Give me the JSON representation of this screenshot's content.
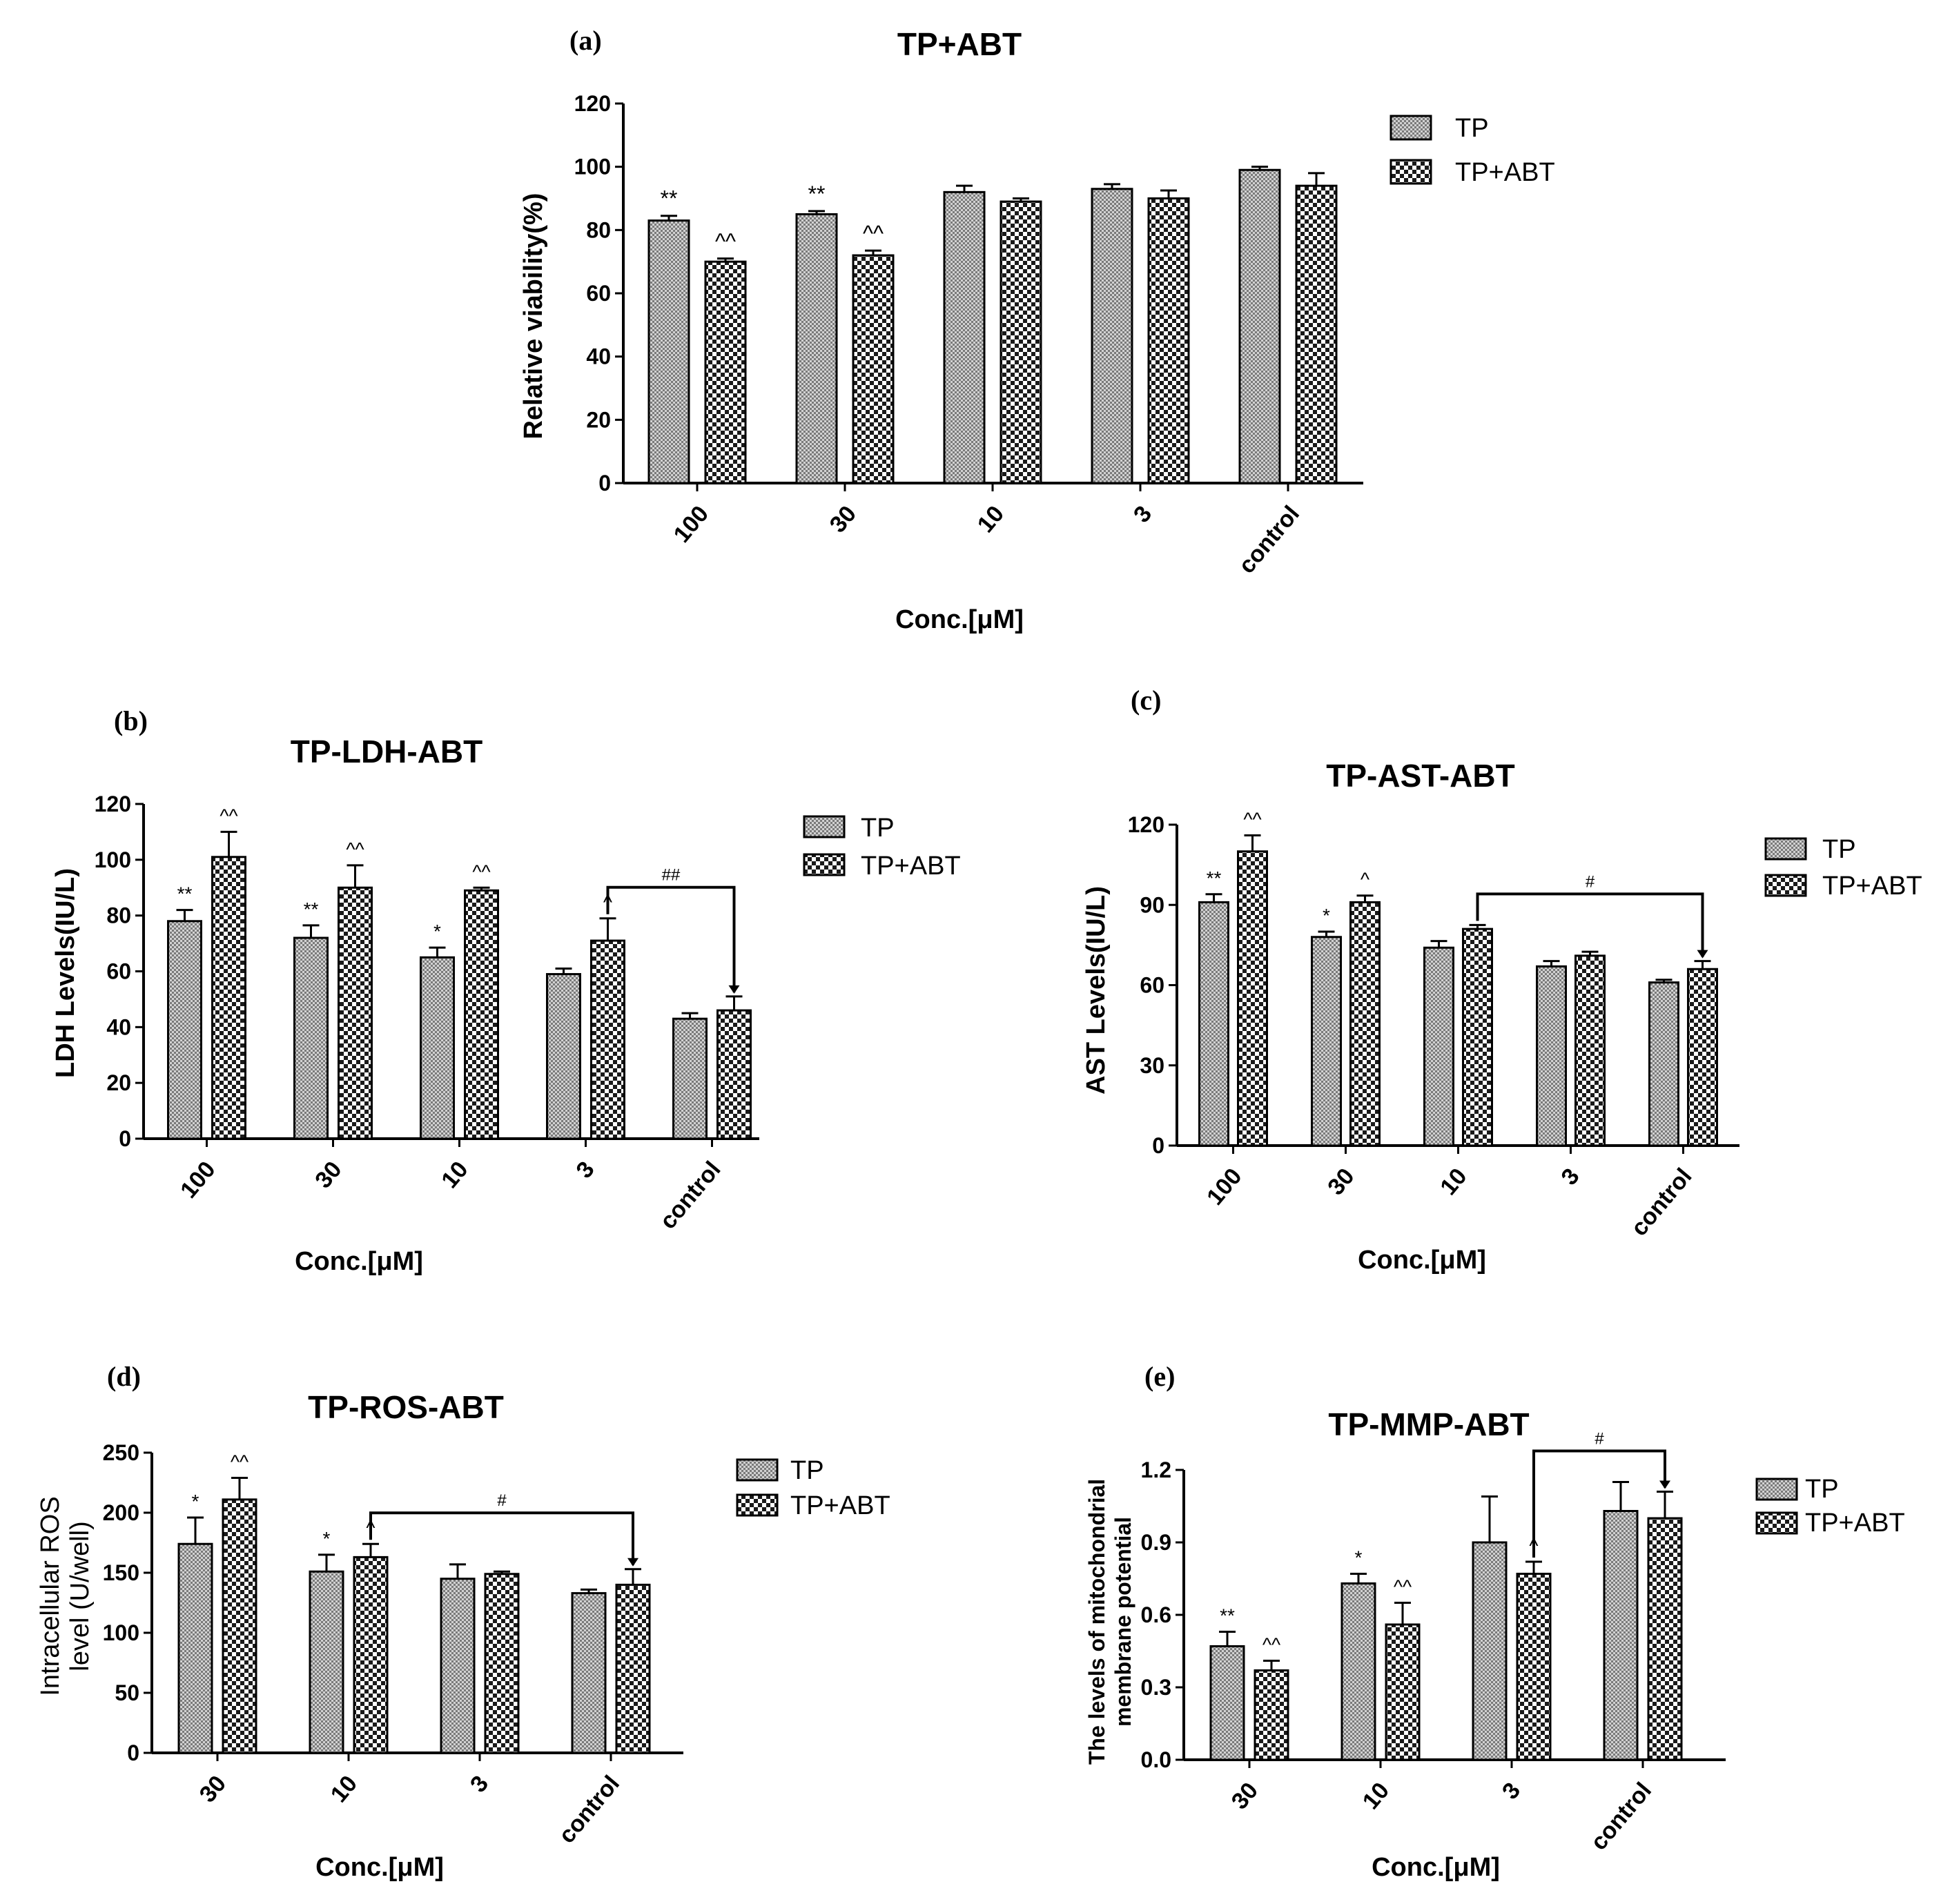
{
  "figure": {
    "background": "#ffffff",
    "ink": "#000000"
  },
  "chart_data": [
    {
      "id": "a",
      "panel_label": "(a)",
      "type": "bar",
      "title": "TP+ABT",
      "xlabel": "Conc.[μM]",
      "ylabel": [
        "Relative viability(%)"
      ],
      "ylim": [
        0,
        120
      ],
      "yticks": [
        0,
        20,
        40,
        60,
        80,
        100,
        120
      ],
      "tick_decimals": 0,
      "legend_position": "top-right",
      "categories": [
        "100",
        "30",
        "10",
        "3",
        "control"
      ],
      "series": [
        {
          "name": "TP",
          "values": [
            83,
            85,
            92,
            93,
            99
          ],
          "errors": [
            1.5,
            1,
            2,
            1.5,
            1
          ],
          "annotations": [
            "**",
            "**",
            "",
            "",
            ""
          ]
        },
        {
          "name": "TP+ABT",
          "values": [
            70,
            72,
            89,
            90,
            94
          ],
          "errors": [
            1,
            1.5,
            1,
            2.5,
            4
          ],
          "annotations": [
            "^^",
            "^^",
            "",
            "",
            ""
          ]
        }
      ],
      "brackets": []
    },
    {
      "id": "b",
      "panel_label": "(b)",
      "type": "bar",
      "title": "TP-LDH-ABT",
      "xlabel": "Conc.[μM]",
      "ylabel": [
        "LDH Levels(IU/L)"
      ],
      "ylim": [
        0,
        120
      ],
      "yticks": [
        0,
        20,
        40,
        60,
        80,
        100,
        120
      ],
      "tick_decimals": 0,
      "legend_position": "top-right",
      "categories": [
        "100",
        "30",
        "10",
        "3",
        "control"
      ],
      "series": [
        {
          "name": "TP",
          "values": [
            78,
            72,
            65,
            59,
            43
          ],
          "errors": [
            4,
            4.5,
            3.5,
            2,
            2
          ],
          "annotations": [
            "**",
            "**",
            "*",
            "",
            ""
          ]
        },
        {
          "name": "TP+ABT",
          "values": [
            101,
            90,
            89,
            71,
            46
          ],
          "errors": [
            9,
            8,
            1,
            8,
            5
          ],
          "annotations": [
            "^^",
            "^^",
            "^^",
            "^",
            ""
          ]
        }
      ],
      "brackets": [
        {
          "from": [
            3,
            1
          ],
          "to": [
            4,
            1
          ],
          "label": "##"
        }
      ]
    },
    {
      "id": "c",
      "panel_label": "(c)",
      "type": "bar",
      "title": "TP-AST-ABT",
      "xlabel": "Conc.[μM]",
      "ylabel": [
        "AST Levels(IU/L)"
      ],
      "ylim": [
        0,
        120
      ],
      "yticks": [
        0,
        30,
        60,
        90,
        120
      ],
      "tick_decimals": 0,
      "legend_position": "top-right",
      "categories": [
        "100",
        "30",
        "10",
        "3",
        "control"
      ],
      "series": [
        {
          "name": "TP",
          "values": [
            91,
            78,
            74,
            67,
            61
          ],
          "errors": [
            3,
            2,
            2.5,
            2,
            1
          ],
          "annotations": [
            "**",
            "*",
            "",
            "",
            ""
          ]
        },
        {
          "name": "TP+ABT",
          "values": [
            110,
            91,
            81,
            71,
            66
          ],
          "errors": [
            6,
            2.5,
            1.5,
            1.5,
            3
          ],
          "annotations": [
            "^^",
            "^",
            "",
            "",
            ""
          ]
        }
      ],
      "brackets": [
        {
          "from": [
            2,
            1
          ],
          "to": [
            4,
            1
          ],
          "label": "#"
        }
      ]
    },
    {
      "id": "d",
      "panel_label": "(d)",
      "type": "bar",
      "title": "TP-ROS-ABT",
      "xlabel": "Conc.[μM]",
      "ylabel": [
        "Intracellular ROS",
        "level (U/well)"
      ],
      "ylim": [
        0,
        250
      ],
      "yticks": [
        0,
        50,
        100,
        150,
        200,
        250
      ],
      "tick_decimals": 0,
      "legend_position": "top-right",
      "categories": [
        "30",
        "10",
        "3",
        "control"
      ],
      "series": [
        {
          "name": "TP",
          "values": [
            174,
            151,
            145,
            133
          ],
          "errors": [
            22,
            14,
            12,
            3
          ],
          "annotations": [
            "*",
            "*",
            "",
            ""
          ]
        },
        {
          "name": "TP+ABT",
          "values": [
            211,
            163,
            149,
            140
          ],
          "errors": [
            18,
            11,
            2,
            13
          ],
          "annotations": [
            "^^",
            "^",
            "",
            ""
          ]
        }
      ],
      "brackets": [
        {
          "from": [
            1,
            1
          ],
          "to": [
            3,
            1
          ],
          "label": "#"
        }
      ]
    },
    {
      "id": "e",
      "panel_label": "(e)",
      "type": "bar",
      "title": "TP-MMP-ABT",
      "xlabel": "Conc.[μM]",
      "ylabel": [
        "The levels of mitochondrial",
        "membrane potential"
      ],
      "ylim": [
        0,
        1.2
      ],
      "yticks": [
        0,
        0.3,
        0.6,
        0.9,
        1.2
      ],
      "tick_decimals": 1,
      "legend_position": "top-right",
      "categories": [
        "30",
        "10",
        "3",
        "control"
      ],
      "series": [
        {
          "name": "TP",
          "values": [
            0.47,
            0.73,
            0.9,
            1.03
          ],
          "errors": [
            0.06,
            0.04,
            0.19,
            0.12
          ],
          "annotations": [
            "**",
            "*",
            "",
            ""
          ]
        },
        {
          "name": "TP+ABT",
          "values": [
            0.37,
            0.56,
            0.77,
            1.0
          ],
          "errors": [
            0.04,
            0.09,
            0.05,
            0.11
          ],
          "annotations": [
            "^^",
            "^^",
            "^",
            ""
          ]
        }
      ],
      "brackets": [
        {
          "from": [
            2,
            1
          ],
          "to": [
            3,
            1
          ],
          "label": "#"
        }
      ]
    }
  ]
}
